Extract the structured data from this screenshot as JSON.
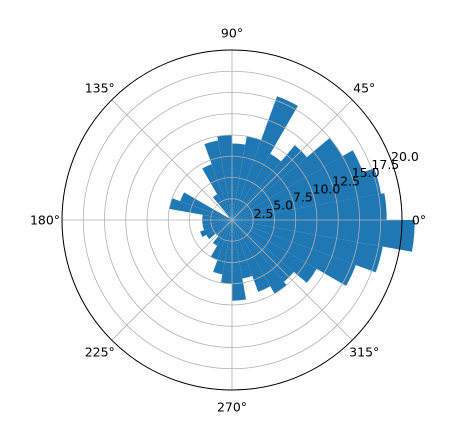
{
  "chart_data": {
    "type": "bar",
    "projection": "polar",
    "angle_unit": "degrees",
    "theta_tick_labels": [
      "0°",
      "45°",
      "90°",
      "135°",
      "180°",
      "225°",
      "270°",
      "315°"
    ],
    "theta_ticks": [
      0,
      45,
      90,
      135,
      180,
      225,
      270,
      315
    ],
    "r_tick_labels": [
      "2.5",
      "5.0",
      "7.5",
      "10.0",
      "12.5",
      "15.0",
      "17.5",
      "20.0"
    ],
    "r_ticks": [
      2.5,
      5.0,
      7.5,
      10.0,
      12.5,
      15.0,
      17.5,
      20.0
    ],
    "r_label_angle": 22.5,
    "rlim": [
      0,
      20.0
    ],
    "grid": true,
    "bar_color": "#1f77b4",
    "bin_width_deg": 10,
    "theta_centers": [
      5,
      15,
      25,
      35,
      45,
      55,
      65,
      75,
      85,
      95,
      105,
      115,
      125,
      135,
      145,
      155,
      165,
      175,
      185,
      195,
      205,
      215,
      225,
      235,
      245,
      255,
      265,
      275,
      285,
      295,
      305,
      315,
      325,
      335,
      345,
      355
    ],
    "values": [
      18.2,
      17.8,
      16.4,
      15.0,
      11.5,
      9.0,
      15.5,
      10.0,
      9.0,
      10.0,
      9.5,
      7.0,
      3.5,
      0.2,
      0.5,
      6.5,
      7.5,
      3.5,
      3.5,
      3.5,
      4.0,
      3.5,
      2.5,
      3.5,
      5.0,
      6.5,
      7.5,
      9.5,
      7.0,
      9.0,
      10.0,
      9.5,
      11.5,
      15.5,
      18.0,
      21.5
    ]
  }
}
